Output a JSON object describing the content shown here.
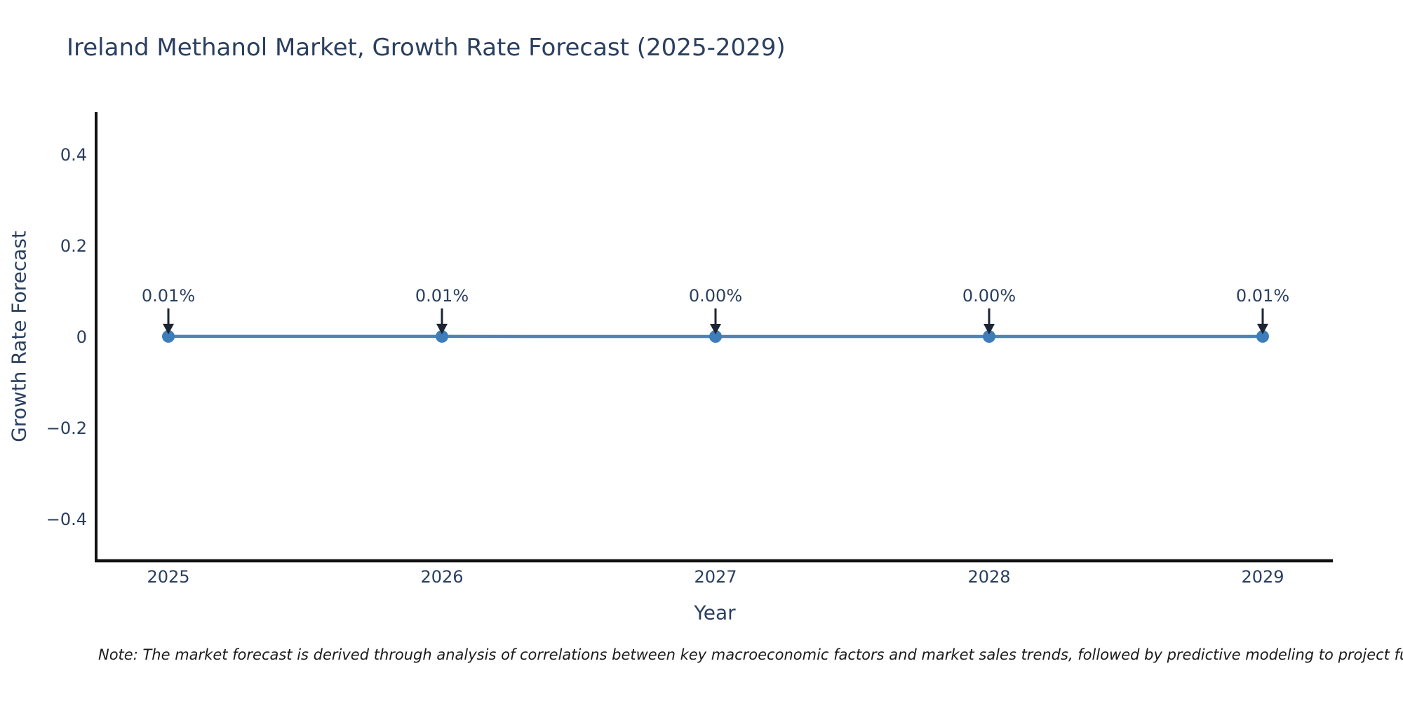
{
  "page": {
    "background": "#ffffff"
  },
  "chart_data": {
    "type": "line",
    "title": "Ireland Methanol Market, Growth Rate Forecast (2025-2029)",
    "xlabel": "Year",
    "ylabel": "Growth Rate Forecast",
    "x": [
      2025,
      2026,
      2027,
      2028,
      2029
    ],
    "series": [
      {
        "name": "Growth Rate Forecast",
        "unit": "%",
        "values": [
          0.01,
          0.01,
          0.0,
          0.0,
          0.01
        ],
        "point_labels": [
          "0.01%",
          "0.01%",
          "0.00%",
          "0.00%",
          "0.01%"
        ]
      }
    ],
    "xticks": [
      "2025",
      "2026",
      "2027",
      "2028",
      "2029"
    ],
    "yticks": {
      "values": [
        0.4,
        0.2,
        0,
        -0.2,
        -0.4
      ],
      "labels": [
        "0.4",
        "0.2",
        "0",
        "−0.2",
        "−0.4"
      ]
    },
    "ylim": [
      -0.49,
      0.49
    ],
    "grid": false,
    "legend": "none",
    "annotations_have_arrows": true,
    "colors": {
      "line": "#4f83b4",
      "marker": "#3d7db9",
      "text": "#2a3f5f",
      "axis": "#111111",
      "arrow": "#1c2533",
      "note_text": "#1a1a1a"
    },
    "note": "Note: The market forecast is derived through analysis of correlations between key macroeconomic factors and market sales trends, followed by predictive modeling to project future sa"
  }
}
